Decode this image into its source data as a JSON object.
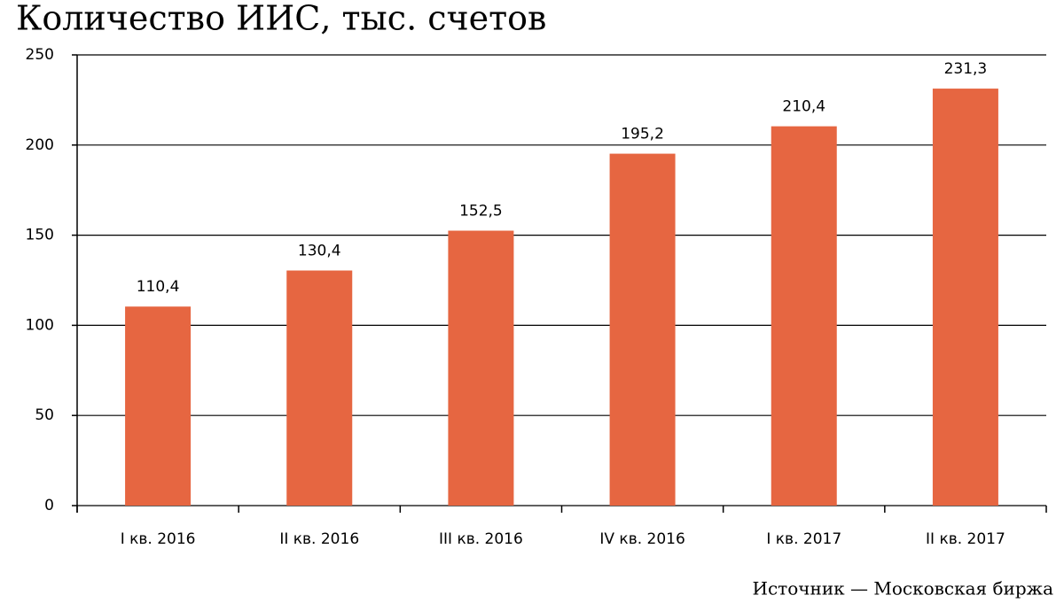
{
  "chart_data": {
    "type": "bar",
    "title": "Количество ИИС, тыс. счетов",
    "categories": [
      "I кв. 2016",
      "II кв. 2016",
      "III кв. 2016",
      "IV кв. 2016",
      "I кв. 2017",
      "II кв. 2017"
    ],
    "values": [
      110.4,
      130.4,
      152.5,
      195.2,
      210.4,
      231.3
    ],
    "value_labels": [
      "110,4",
      "130,4",
      "152,5",
      "195,2",
      "210,4",
      "231,3"
    ],
    "color": "#e66641",
    "ylim": [
      0,
      250
    ],
    "yticks": [
      0,
      50,
      100,
      150,
      200,
      250
    ],
    "grid": true,
    "source": "Источник — Московская биржа"
  }
}
